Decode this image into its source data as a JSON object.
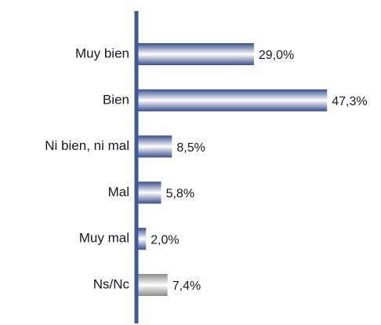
{
  "chart_data": {
    "type": "bar",
    "orientation": "horizontal",
    "categories": [
      "Muy bien",
      "Bien",
      "Ni bien, ni mal",
      "Mal",
      "Muy mal",
      "Ns/Nc"
    ],
    "values": [
      29.0,
      47.3,
      8.5,
      5.8,
      2.0,
      7.4
    ],
    "value_labels": [
      "29,0%",
      "47,3%",
      "8,5%",
      "5,8%",
      "2,0%",
      "7,4%"
    ],
    "colors": [
      "#3b4e8c",
      "#3b4e8c",
      "#3b4e8c",
      "#3b4e8c",
      "#3b4e8c",
      "#8a8a8a"
    ],
    "axis_color": "#3f5a99"
  }
}
